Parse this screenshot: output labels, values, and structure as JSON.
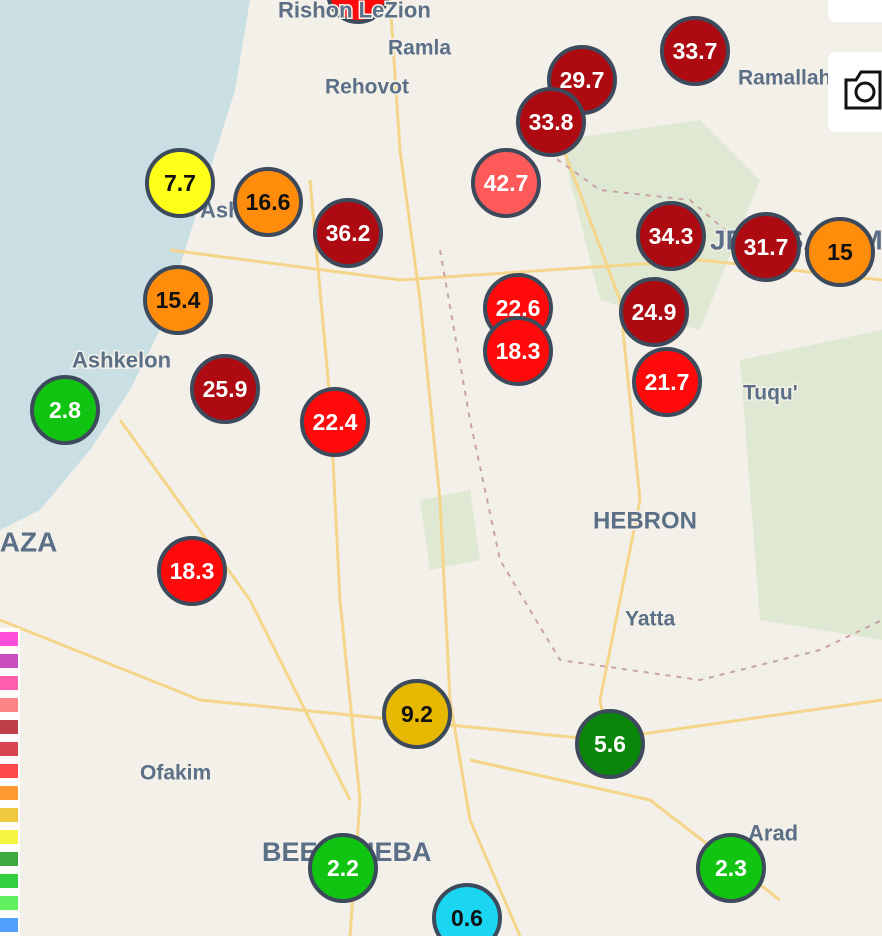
{
  "places": [
    "Rishon LeZion",
    "Ramla",
    "Rehovot",
    "Ramallah",
    "JERUSALEM",
    "Ashdod",
    "Ashkelon",
    "Tuqu'",
    "GAZA",
    "HEBRON",
    "Yatta",
    "Ofakim",
    "BEERSHEBA",
    "Arad"
  ],
  "markers": [
    {
      "value": 33.7,
      "color": "#ad0a12"
    },
    {
      "value": 29.7,
      "color": "#ad0a12"
    },
    {
      "value": 33.8,
      "color": "#ad0a12"
    },
    {
      "value": 42.7,
      "color": "#ff5a5a"
    },
    {
      "value": 7.7,
      "color": "#ffff1a"
    },
    {
      "value": 16.6,
      "color": "#ff8c0a"
    },
    {
      "value": 36.2,
      "color": "#ad0a12"
    },
    {
      "value": 34.3,
      "color": "#ad0a12"
    },
    {
      "value": 31.7,
      "color": "#ad0a12"
    },
    {
      "value": 15,
      "color": "#ff8c0a"
    },
    {
      "value": 15.4,
      "color": "#ff8c0a"
    },
    {
      "value": 22.6,
      "color": "#ff0a0a"
    },
    {
      "value": 24.9,
      "color": "#ad0a12"
    },
    {
      "value": 18.3,
      "color": "#ff0a0a"
    },
    {
      "value": 21.7,
      "color": "#ff0a0a"
    },
    {
      "value": 25.9,
      "color": "#ad0a12"
    },
    {
      "value": 2.8,
      "color": "#12c412"
    },
    {
      "value": 22.4,
      "color": "#ff0a0a"
    },
    {
      "value": 18.3,
      "color": "#ff0a0a"
    },
    {
      "value": 9.2,
      "color": "#e6b800"
    },
    {
      "value": 5.6,
      "color": "#0a870a"
    },
    {
      "value": 2.2,
      "color": "#12c412"
    },
    {
      "value": 2.3,
      "color": "#12c412"
    },
    {
      "value": 0.6,
      "color": "#1ad6f2"
    }
  ]
}
